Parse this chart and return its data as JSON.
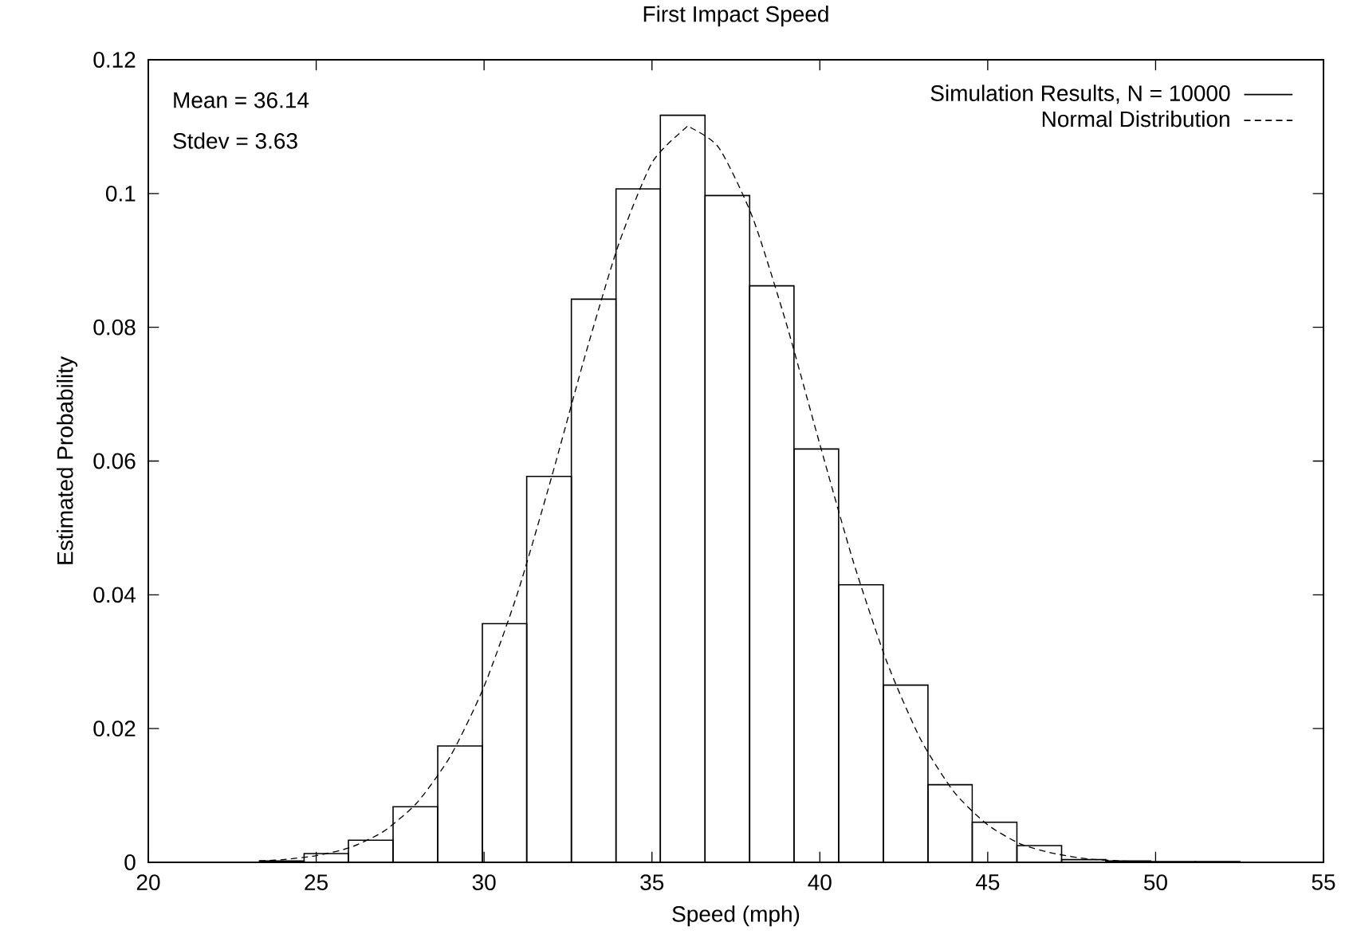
{
  "chart_data": {
    "type": "histogram",
    "title": "First Impact Speed",
    "xlabel": "Speed (mph)",
    "ylabel": "Estimated Probability",
    "annotations": [
      "Mean = 36.14",
      "Stdev = 3.63"
    ],
    "xlim": [
      20,
      55
    ],
    "ylim": [
      0,
      0.12
    ],
    "xticks": [
      20,
      25,
      30,
      35,
      40,
      45,
      50,
      55
    ],
    "yticks": [
      0,
      0.02,
      0.04,
      0.06,
      0.08,
      0.1,
      0.12
    ],
    "legend": "top right",
    "grid": false,
    "series": [
      {
        "name": "Simulation Results, N = 10000",
        "color": "#000000",
        "line_style": "solid",
        "bins": [
          23.31,
          24.64,
          25.96,
          27.29,
          28.62,
          29.95,
          31.27,
          32.6,
          33.93,
          35.25,
          36.58,
          37.91,
          39.23,
          40.56,
          41.89,
          43.22,
          44.54,
          45.87,
          47.2,
          48.52,
          49.85,
          51.18,
          52.51
        ],
        "values": [
          0.0002,
          0.0013,
          0.0033,
          0.0083,
          0.0174,
          0.0357,
          0.0577,
          0.0842,
          0.1007,
          0.1117,
          0.0997,
          0.0862,
          0.0618,
          0.0415,
          0.0265,
          0.0116,
          0.006,
          0.0025,
          0.0004,
          0.0002,
          0.0001,
          0.0001
        ]
      },
      {
        "name": "Normal Distribution",
        "type": "line",
        "color": "#000000",
        "line_style": "dashed",
        "x": [
          23.3,
          24,
          25,
          26,
          27,
          28,
          29,
          30,
          31,
          32,
          33,
          34,
          35,
          36,
          36.14,
          37,
          38,
          39,
          40,
          41,
          42,
          43,
          44,
          45,
          46,
          47,
          48,
          49,
          50
        ],
        "values": [
          0.0002,
          0.0004,
          0.001,
          0.0022,
          0.0046,
          0.0089,
          0.0159,
          0.0263,
          0.0403,
          0.0574,
          0.0756,
          0.0923,
          0.1046,
          0.1098,
          0.1099,
          0.1068,
          0.0964,
          0.0806,
          0.0625,
          0.0449,
          0.0299,
          0.0184,
          0.0105,
          0.0056,
          0.0027,
          0.0013,
          0.0005,
          0.0002,
          0.0001
        ]
      }
    ]
  }
}
